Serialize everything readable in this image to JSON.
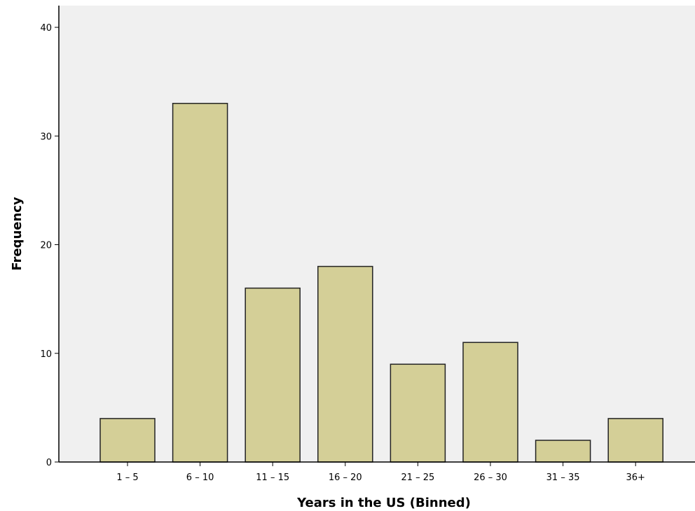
{
  "chart_data": {
    "type": "bar",
    "title": "",
    "xlabel": "Years in the US (Binned)",
    "ylabel": "Frequency",
    "categories": [
      "1 – 5",
      "6 – 10",
      "11 – 15",
      "16 – 20",
      "21 – 25",
      "26 – 30",
      "31 – 35",
      "36+"
    ],
    "values": [
      4,
      33,
      16,
      18,
      9,
      11,
      2,
      4
    ],
    "ylim": [
      0,
      42
    ],
    "yticks": [
      0,
      10,
      20,
      30,
      40
    ],
    "grid": false,
    "legend": "none",
    "colors": {
      "bar_fill": "#d4cf97",
      "bar_stroke": "#222222",
      "plot_background": "#f0f0f0",
      "axis": "#000000"
    }
  }
}
